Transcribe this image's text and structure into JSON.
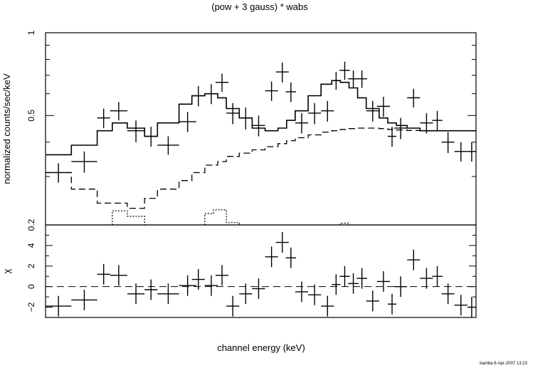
{
  "chart_data": [
    {
      "type": "scatter",
      "title": "(pow + 3 gauss) * wabs",
      "ylabel": "normalized counts/sec/keV",
      "xlabel": "",
      "yscale": "log",
      "ylim": [
        0.2,
        1
      ],
      "xlim": [
        0,
        1
      ],
      "yticks": [
        {
          "value": 0.2,
          "label": "0.2"
        },
        {
          "value": 0.5,
          "label": "0.5"
        },
        {
          "value": 1,
          "label": "1"
        }
      ],
      "data_points": [
        {
          "x": 0.03,
          "xerr": 0.03,
          "y": 0.31,
          "yerr": 0.025
        },
        {
          "x": 0.09,
          "xerr": 0.03,
          "y": 0.34,
          "yerr": 0.03
        },
        {
          "x": 0.135,
          "xerr": 0.015,
          "y": 0.49,
          "yerr": 0.04
        },
        {
          "x": 0.17,
          "xerr": 0.02,
          "y": 0.52,
          "yerr": 0.04
        },
        {
          "x": 0.21,
          "xerr": 0.02,
          "y": 0.44,
          "yerr": 0.04
        },
        {
          "x": 0.245,
          "xerr": 0.015,
          "y": 0.42,
          "yerr": 0.035
        },
        {
          "x": 0.285,
          "xerr": 0.025,
          "y": 0.39,
          "yerr": 0.03
        },
        {
          "x": 0.33,
          "xerr": 0.02,
          "y": 0.475,
          "yerr": 0.04
        },
        {
          "x": 0.355,
          "xerr": 0.015,
          "y": 0.59,
          "yerr": 0.05
        },
        {
          "x": 0.385,
          "xerr": 0.015,
          "y": 0.6,
          "yerr": 0.05
        },
        {
          "x": 0.41,
          "xerr": 0.015,
          "y": 0.66,
          "yerr": 0.05
        },
        {
          "x": 0.435,
          "xerr": 0.015,
          "y": 0.51,
          "yerr": 0.045
        },
        {
          "x": 0.465,
          "xerr": 0.015,
          "y": 0.49,
          "yerr": 0.045
        },
        {
          "x": 0.495,
          "xerr": 0.015,
          "y": 0.46,
          "yerr": 0.04
        },
        {
          "x": 0.525,
          "xerr": 0.015,
          "y": 0.615,
          "yerr": 0.05
        },
        {
          "x": 0.55,
          "xerr": 0.015,
          "y": 0.72,
          "yerr": 0.06
        },
        {
          "x": 0.57,
          "xerr": 0.012,
          "y": 0.61,
          "yerr": 0.05
        },
        {
          "x": 0.595,
          "xerr": 0.015,
          "y": 0.47,
          "yerr": 0.04
        },
        {
          "x": 0.625,
          "xerr": 0.015,
          "y": 0.51,
          "yerr": 0.045
        },
        {
          "x": 0.655,
          "xerr": 0.015,
          "y": 0.52,
          "yerr": 0.045
        },
        {
          "x": 0.675,
          "xerr": 0.01,
          "y": 0.67,
          "yerr": 0.05
        },
        {
          "x": 0.695,
          "xerr": 0.012,
          "y": 0.73,
          "yerr": 0.055
        },
        {
          "x": 0.715,
          "xerr": 0.012,
          "y": 0.68,
          "yerr": 0.05
        },
        {
          "x": 0.735,
          "xerr": 0.012,
          "y": 0.68,
          "yerr": 0.05
        },
        {
          "x": 0.76,
          "xerr": 0.015,
          "y": 0.52,
          "yerr": 0.045
        },
        {
          "x": 0.785,
          "xerr": 0.015,
          "y": 0.54,
          "yerr": 0.045
        },
        {
          "x": 0.805,
          "xerr": 0.01,
          "y": 0.42,
          "yerr": 0.035
        },
        {
          "x": 0.825,
          "xerr": 0.015,
          "y": 0.45,
          "yerr": 0.04
        },
        {
          "x": 0.855,
          "xerr": 0.015,
          "y": 0.58,
          "yerr": 0.045
        },
        {
          "x": 0.885,
          "xerr": 0.015,
          "y": 0.47,
          "yerr": 0.04
        },
        {
          "x": 0.91,
          "xerr": 0.012,
          "y": 0.48,
          "yerr": 0.04
        },
        {
          "x": 0.935,
          "xerr": 0.015,
          "y": 0.4,
          "yerr": 0.035
        },
        {
          "x": 0.965,
          "xerr": 0.015,
          "y": 0.37,
          "yerr": 0.03
        },
        {
          "x": 0.99,
          "xerr": 0.01,
          "y": 0.37,
          "yerr": 0.03
        }
      ],
      "model_total": {
        "x": [
          0,
          0.06,
          0.06,
          0.12,
          0.12,
          0.155,
          0.155,
          0.19,
          0.19,
          0.23,
          0.23,
          0.26,
          0.26,
          0.31,
          0.31,
          0.34,
          0.34,
          0.37,
          0.37,
          0.4,
          0.4,
          0.42,
          0.42,
          0.45,
          0.45,
          0.48,
          0.48,
          0.51,
          0.51,
          0.54,
          0.54,
          0.56,
          0.56,
          0.58,
          0.58,
          0.61,
          0.61,
          0.64,
          0.64,
          0.665,
          0.665,
          0.685,
          0.685,
          0.705,
          0.705,
          0.725,
          0.725,
          0.745,
          0.745,
          0.775,
          0.775,
          0.795,
          0.795,
          0.815,
          0.815,
          0.84,
          0.84,
          0.87,
          0.87,
          1.0
        ],
        "y": [
          0.36,
          0.36,
          0.39,
          0.39,
          0.44,
          0.44,
          0.47,
          0.47,
          0.45,
          0.45,
          0.42,
          0.42,
          0.47,
          0.47,
          0.55,
          0.55,
          0.59,
          0.59,
          0.6,
          0.6,
          0.58,
          0.58,
          0.53,
          0.53,
          0.49,
          0.49,
          0.45,
          0.45,
          0.44,
          0.44,
          0.45,
          0.45,
          0.48,
          0.48,
          0.52,
          0.52,
          0.59,
          0.59,
          0.65,
          0.65,
          0.67,
          0.67,
          0.66,
          0.66,
          0.63,
          0.63,
          0.58,
          0.58,
          0.53,
          0.53,
          0.49,
          0.49,
          0.47,
          0.47,
          0.46,
          0.46,
          0.45,
          0.45,
          0.44,
          0.44
        ]
      },
      "model_continuum": {
        "x": [
          0,
          0.06,
          0.06,
          0.12,
          0.12,
          0.19,
          0.19,
          0.23,
          0.23,
          0.26,
          0.26,
          0.31,
          0.31,
          0.34,
          0.34,
          0.37,
          0.37,
          0.4,
          0.4,
          0.42,
          0.42,
          0.45,
          0.45,
          0.48,
          0.48,
          0.51,
          0.51,
          0.54,
          0.54,
          0.56,
          0.56,
          0.58,
          0.58,
          0.61,
          0.61,
          0.64,
          0.64,
          0.665,
          0.665,
          0.685,
          0.685,
          0.705,
          0.705,
          0.725,
          0.725,
          0.745,
          0.745,
          0.775,
          0.775,
          0.795,
          0.795,
          0.815,
          0.815,
          0.84,
          0.84,
          0.87,
          0.87,
          1.0
        ],
        "y": [
          0.31,
          0.31,
          0.27,
          0.27,
          0.24,
          0.24,
          0.23,
          0.23,
          0.25,
          0.25,
          0.27,
          0.27,
          0.29,
          0.29,
          0.31,
          0.31,
          0.33,
          0.33,
          0.34,
          0.34,
          0.355,
          0.355,
          0.365,
          0.365,
          0.375,
          0.375,
          0.385,
          0.385,
          0.395,
          0.395,
          0.405,
          0.405,
          0.415,
          0.415,
          0.425,
          0.425,
          0.435,
          0.435,
          0.44,
          0.44,
          0.445,
          0.445,
          0.448,
          0.448,
          0.45,
          0.45,
          0.45,
          0.45,
          0.448,
          0.448,
          0.445,
          0.445,
          0.443,
          0.443,
          0.441,
          0.441,
          0.44,
          0.44
        ]
      },
      "model_gauss": [
        {
          "x": [
            0.155,
            0.155,
            0.19,
            0.19,
            0.23,
            0.23
          ],
          "y": [
            0.2,
            0.225,
            0.225,
            0.215,
            0.215,
            0.2
          ]
        },
        {
          "x": [
            0.37,
            0.37,
            0.39,
            0.39,
            0.41,
            0.41,
            0.42,
            0.42,
            0.45,
            0.45
          ],
          "y": [
            0.2,
            0.22,
            0.22,
            0.227,
            0.227,
            0.227,
            0.227,
            0.204,
            0.204,
            0.2
          ]
        },
        {
          "x": [
            0.685,
            0.685,
            0.705,
            0.705
          ],
          "y": [
            0.2,
            0.203,
            0.203,
            0.2
          ]
        }
      ]
    },
    {
      "type": "scatter",
      "ylabel": "χ",
      "xlabel": "channel energy (keV)",
      "ylim": [
        -3,
        6
      ],
      "xlim": [
        0,
        1
      ],
      "yticks": [
        {
          "value": -2,
          "label": "−2"
        },
        {
          "value": 0,
          "label": "0"
        },
        {
          "value": 2,
          "label": "2"
        },
        {
          "value": 4,
          "label": "4"
        }
      ],
      "zero_line": 0,
      "data_points": [
        {
          "x": 0.03,
          "xerr": 0.03,
          "y": -1.9
        },
        {
          "x": 0.09,
          "xerr": 0.03,
          "y": -1.3
        },
        {
          "x": 0.135,
          "xerr": 0.015,
          "y": 1.2
        },
        {
          "x": 0.17,
          "xerr": 0.02,
          "y": 1.1
        },
        {
          "x": 0.21,
          "xerr": 0.02,
          "y": -0.7
        },
        {
          "x": 0.245,
          "xerr": 0.015,
          "y": -0.3
        },
        {
          "x": 0.285,
          "xerr": 0.025,
          "y": -0.7
        },
        {
          "x": 0.33,
          "xerr": 0.02,
          "y": 0.1
        },
        {
          "x": 0.355,
          "xerr": 0.015,
          "y": 0.7
        },
        {
          "x": 0.385,
          "xerr": 0.015,
          "y": 0.1
        },
        {
          "x": 0.41,
          "xerr": 0.015,
          "y": 1.1
        },
        {
          "x": 0.435,
          "xerr": 0.015,
          "y": -1.9
        },
        {
          "x": 0.465,
          "xerr": 0.015,
          "y": -0.7
        },
        {
          "x": 0.495,
          "xerr": 0.015,
          "y": -0.2
        },
        {
          "x": 0.525,
          "xerr": 0.015,
          "y": 2.9
        },
        {
          "x": 0.55,
          "xerr": 0.015,
          "y": 4.3
        },
        {
          "x": 0.57,
          "xerr": 0.012,
          "y": 2.8
        },
        {
          "x": 0.595,
          "xerr": 0.015,
          "y": -0.5
        },
        {
          "x": 0.625,
          "xerr": 0.015,
          "y": -0.8
        },
        {
          "x": 0.655,
          "xerr": 0.015,
          "y": -1.9
        },
        {
          "x": 0.675,
          "xerr": 0.01,
          "y": 0.2
        },
        {
          "x": 0.695,
          "xerr": 0.012,
          "y": 1.0
        },
        {
          "x": 0.715,
          "xerr": 0.012,
          "y": 0.3
        },
        {
          "x": 0.735,
          "xerr": 0.012,
          "y": 0.8
        },
        {
          "x": 0.76,
          "xerr": 0.015,
          "y": -1.4
        },
        {
          "x": 0.785,
          "xerr": 0.015,
          "y": 0.5
        },
        {
          "x": 0.805,
          "xerr": 0.01,
          "y": -1.7
        },
        {
          "x": 0.825,
          "xerr": 0.015,
          "y": 0.0
        },
        {
          "x": 0.855,
          "xerr": 0.015,
          "y": 2.6
        },
        {
          "x": 0.885,
          "xerr": 0.015,
          "y": 0.8
        },
        {
          "x": 0.91,
          "xerr": 0.012,
          "y": 1.0
        },
        {
          "x": 0.935,
          "xerr": 0.015,
          "y": -0.7
        },
        {
          "x": 0.965,
          "xerr": 0.015,
          "y": -1.8
        },
        {
          "x": 0.99,
          "xerr": 0.01,
          "y": -2.0
        }
      ]
    }
  ],
  "footer": {
    "credit": "bamba  6-Apr-2007 13:23"
  }
}
